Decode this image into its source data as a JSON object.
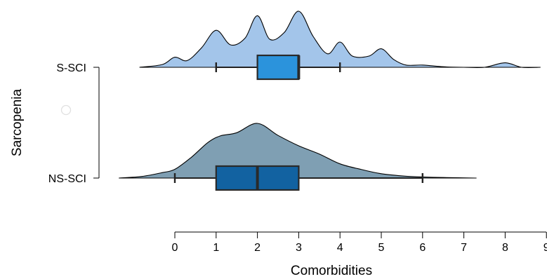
{
  "chart_data": {
    "type": "raincloud",
    "orientation": "horizontal",
    "title": "",
    "xlabel": "Comorbidities",
    "ylabel": "Sarcopenia",
    "xlim": [
      0,
      9
    ],
    "xticks": [
      "0",
      "1",
      "2",
      "3",
      "4",
      "5",
      "6",
      "7",
      "8",
      "9"
    ],
    "categories": [
      "S-SCI",
      "NS-SCI"
    ],
    "series": [
      {
        "name": "S-SCI",
        "fill_color": "#a3c5ea",
        "box_color": "#2b93dc",
        "box": {
          "whisker_low": 1,
          "q1": 2,
          "median": 3,
          "q3": 3,
          "whisker_high": 4
        },
        "density": {
          "x": [
            -0.85,
            -0.3,
            0,
            0.3,
            0.65,
            1,
            1.35,
            1.7,
            2,
            2.3,
            2.65,
            3,
            3.35,
            3.7,
            4,
            4.3,
            4.7,
            5,
            5.3,
            5.6,
            6,
            6.5,
            7,
            7.5,
            8,
            8.4,
            8.85
          ],
          "y": [
            0,
            0.05,
            0.18,
            0.12,
            0.35,
            0.66,
            0.4,
            0.52,
            0.92,
            0.5,
            0.62,
            1.0,
            0.55,
            0.24,
            0.45,
            0.2,
            0.2,
            0.33,
            0.14,
            0.04,
            0.04,
            0.01,
            0,
            0,
            0.08,
            0,
            0
          ]
        },
        "outliers": []
      },
      {
        "name": "NS-SCI",
        "fill_color": "#7f9fb3",
        "box_color": "#1262a1",
        "box": {
          "whisker_low": 0,
          "q1": 1,
          "median": 2,
          "q3": 3,
          "whisker_high": 6
        },
        "density": {
          "x": [
            -1.35,
            -0.8,
            -0.3,
            0,
            0.4,
            0.8,
            1.1,
            1.5,
            2,
            2.5,
            3,
            3.5,
            4,
            4.5,
            5,
            5.5,
            6,
            6.5,
            7.3
          ],
          "y": [
            0,
            0.03,
            0.1,
            0.16,
            0.38,
            0.65,
            0.77,
            0.83,
            1.0,
            0.78,
            0.59,
            0.44,
            0.26,
            0.16,
            0.08,
            0.04,
            0.02,
            0.01,
            0
          ]
        },
        "outliers": []
      }
    ],
    "grid": false,
    "legend": "none"
  }
}
